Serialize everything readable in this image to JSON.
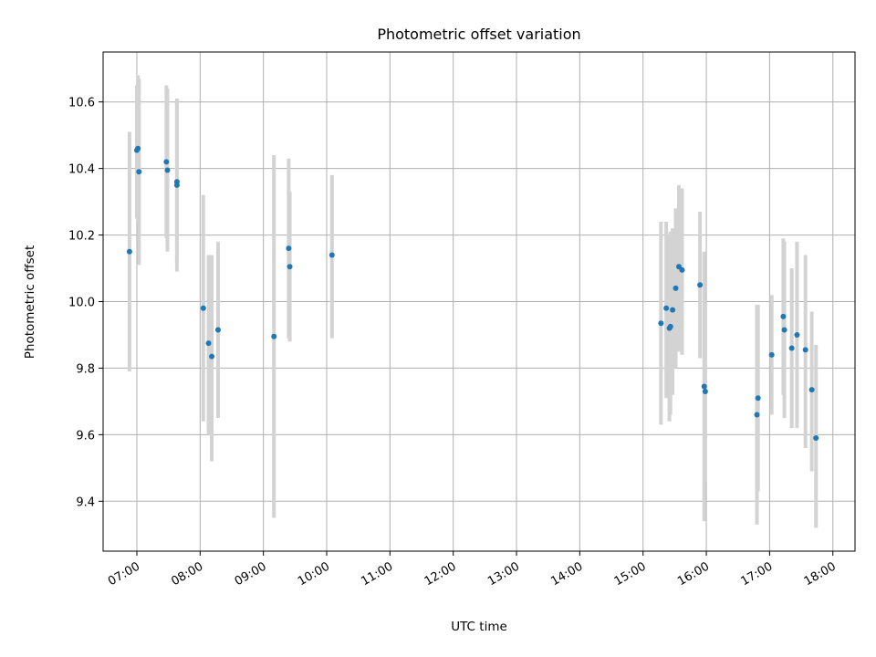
{
  "chart_data": {
    "type": "scatter",
    "title": "Photometric offset variation",
    "xlabel": "UTC time",
    "ylabel": "Photometric offset",
    "xlim": [
      "06:28",
      "18:21"
    ],
    "ylim": [
      9.25,
      10.75
    ],
    "xticks": [
      "07:00",
      "08:00",
      "09:00",
      "10:00",
      "11:00",
      "12:00",
      "13:00",
      "14:00",
      "15:00",
      "16:00",
      "17:00",
      "18:00"
    ],
    "yticks": [
      "9.4",
      "9.6",
      "9.8",
      "10.0",
      "10.2",
      "10.4",
      "10.6"
    ],
    "grid": true,
    "marker_color": "#1f77b4",
    "errorbar_color": "#d3d3d3",
    "points": [
      {
        "x": "06:53",
        "y": 10.15,
        "yerr": [
          9.79,
          10.51
        ]
      },
      {
        "x": "07:00",
        "y": 10.455,
        "yerr": [
          10.25,
          10.65
        ]
      },
      {
        "x": "07:01",
        "y": 10.46,
        "yerr": [
          10.24,
          10.68
        ]
      },
      {
        "x": "07:02",
        "y": 10.39,
        "yerr": [
          10.11,
          10.67
        ]
      },
      {
        "x": "07:28",
        "y": 10.42,
        "yerr": [
          10.19,
          10.65
        ]
      },
      {
        "x": "07:29",
        "y": 10.395,
        "yerr": [
          10.15,
          10.64
        ]
      },
      {
        "x": "07:38",
        "y": 10.36,
        "yerr": [
          10.12,
          10.6
        ]
      },
      {
        "x": "07:38",
        "y": 10.35,
        "yerr": [
          10.09,
          10.61
        ]
      },
      {
        "x": "08:03",
        "y": 9.98,
        "yerr": [
          9.64,
          10.32
        ]
      },
      {
        "x": "08:08",
        "y": 9.875,
        "yerr": [
          9.6,
          10.14
        ]
      },
      {
        "x": "08:11",
        "y": 9.835,
        "yerr": [
          9.52,
          10.14
        ]
      },
      {
        "x": "08:17",
        "y": 9.915,
        "yerr": [
          9.65,
          10.18
        ]
      },
      {
        "x": "09:10",
        "y": 9.895,
        "yerr": [
          9.35,
          10.44
        ]
      },
      {
        "x": "09:24",
        "y": 10.16,
        "yerr": [
          9.89,
          10.43
        ]
      },
      {
        "x": "09:25",
        "y": 10.105,
        "yerr": [
          9.88,
          10.33
        ]
      },
      {
        "x": "10:05",
        "y": 10.14,
        "yerr": [
          9.89,
          10.38
        ]
      },
      {
        "x": "15:17",
        "y": 9.935,
        "yerr": [
          9.63,
          10.24
        ]
      },
      {
        "x": "15:22",
        "y": 9.98,
        "yerr": [
          9.71,
          10.24
        ]
      },
      {
        "x": "15:25",
        "y": 9.92,
        "yerr": [
          9.64,
          10.2
        ]
      },
      {
        "x": "15:26",
        "y": 9.925,
        "yerr": [
          9.66,
          10.21
        ]
      },
      {
        "x": "15:28",
        "y": 9.975,
        "yerr": [
          9.72,
          10.22
        ]
      },
      {
        "x": "15:31",
        "y": 10.04,
        "yerr": [
          9.8,
          10.28
        ]
      },
      {
        "x": "15:34",
        "y": 10.105,
        "yerr": [
          9.85,
          10.35
        ]
      },
      {
        "x": "15:37",
        "y": 10.095,
        "yerr": [
          9.84,
          10.34
        ]
      },
      {
        "x": "15:54",
        "y": 10.05,
        "yerr": [
          9.83,
          10.27
        ]
      },
      {
        "x": "15:58",
        "y": 9.745,
        "yerr": [
          9.34,
          10.15
        ]
      },
      {
        "x": "15:59",
        "y": 9.73,
        "yerr": [
          9.46,
          10.0
        ]
      },
      {
        "x": "16:48",
        "y": 9.66,
        "yerr": [
          9.33,
          9.99
        ]
      },
      {
        "x": "16:49",
        "y": 9.71,
        "yerr": [
          9.43,
          9.99
        ]
      },
      {
        "x": "17:02",
        "y": 9.84,
        "yerr": [
          9.66,
          10.02
        ]
      },
      {
        "x": "17:13",
        "y": 9.955,
        "yerr": [
          9.72,
          10.19
        ]
      },
      {
        "x": "17:14",
        "y": 9.915,
        "yerr": [
          9.65,
          10.18
        ]
      },
      {
        "x": "17:21",
        "y": 9.86,
        "yerr": [
          9.62,
          10.1
        ]
      },
      {
        "x": "17:26",
        "y": 9.9,
        "yerr": [
          9.62,
          10.18
        ]
      },
      {
        "x": "17:34",
        "y": 9.855,
        "yerr": [
          9.56,
          10.14
        ]
      },
      {
        "x": "17:40",
        "y": 9.735,
        "yerr": [
          9.49,
          9.97
        ]
      },
      {
        "x": "17:44",
        "y": 9.59,
        "yerr": [
          9.32,
          9.87
        ]
      }
    ]
  }
}
